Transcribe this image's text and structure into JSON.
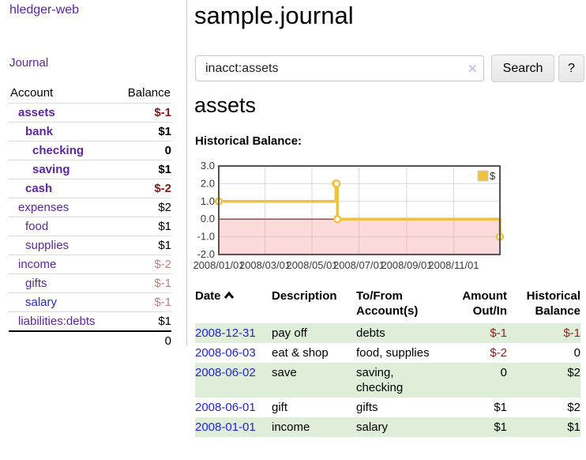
{
  "app": {
    "brand": "hledger-web",
    "journal_link": "Journal"
  },
  "sidebar": {
    "header_account": "Account",
    "header_balance": "Balance",
    "accounts": [
      {
        "name": "assets",
        "balance": "$-1"
      },
      {
        "name": "bank",
        "balance": "$1"
      },
      {
        "name": "checking",
        "balance": "0"
      },
      {
        "name": "saving",
        "balance": "$1"
      },
      {
        "name": "cash",
        "balance": "$-2"
      },
      {
        "name": "expenses",
        "balance": "$2"
      },
      {
        "name": "food",
        "balance": "$1"
      },
      {
        "name": "supplies",
        "balance": "$1"
      },
      {
        "name": "income",
        "balance": "$-2"
      },
      {
        "name": "gifts",
        "balance": "$-1"
      },
      {
        "name": "salary",
        "balance": "$-1"
      },
      {
        "name": "liabilities:debts",
        "balance": "$1"
      }
    ],
    "total": "0"
  },
  "main": {
    "title": "sample.journal",
    "search": {
      "value": "inacct:assets",
      "clear_glyph": "✕",
      "button_label": "Search",
      "help_label": "?"
    },
    "account_heading": "assets",
    "chart_label": "Historical Balance:"
  },
  "chart_data": {
    "type": "line",
    "step": true,
    "title": "Historical Balance of assets",
    "legend": "$",
    "legend_position": "top-right",
    "grid": true,
    "ylim": [
      -2,
      3
    ],
    "xrange": [
      "2008-01-01",
      "2008-12-31"
    ],
    "yticks": [
      {
        "label": "3.0",
        "value": 3
      },
      {
        "label": "2.0",
        "value": 2
      },
      {
        "label": "1.0",
        "value": 1
      },
      {
        "label": "0.0",
        "value": 0
      },
      {
        "label": "-1.0",
        "value": -1
      },
      {
        "label": "-2.0",
        "value": -2
      }
    ],
    "xticks": [
      {
        "label": "2008/01/01",
        "date": "2008-01-01"
      },
      {
        "label": "2008/03/01",
        "date": "2008-03-01"
      },
      {
        "label": "2008/05/01",
        "date": "2008-05-01"
      },
      {
        "label": "2008/07/01",
        "date": "2008-07-01"
      },
      {
        "label": "2008/09/01",
        "date": "2008-09-01"
      },
      {
        "label": "2008/11/01",
        "date": "2008-11-01"
      }
    ],
    "series": [
      {
        "name": "$",
        "color": "#edc240",
        "points": [
          [
            "2008-01-01",
            1
          ],
          [
            "2008-06-01",
            2
          ],
          [
            "2008-06-02",
            2
          ],
          [
            "2008-06-03",
            0
          ],
          [
            "2008-12-31",
            -1
          ]
        ]
      }
    ],
    "grid_color": "#dadada",
    "border_color": "#545454",
    "tick_color": "#3b3b3b",
    "zero_line_color": "#a01010",
    "negative_region_color": "rgba(250,110,110,0.25)"
  },
  "register": {
    "headers": {
      "date": "Date",
      "description": "Description",
      "tofrom_line1": "To/From",
      "tofrom_line2": "Account(s)",
      "amount_line1": "Amount",
      "amount_line2": "Out/In",
      "balance_line1": "Historical",
      "balance_line2": "Balance"
    },
    "rows": [
      {
        "date": "2008-12-31",
        "description": "pay off",
        "accounts": "debts",
        "amount": "$-1",
        "balance": "$-1"
      },
      {
        "date": "2008-06-03",
        "description": "eat & shop",
        "accounts": "food, supplies",
        "amount": "$-2",
        "balance": "0"
      },
      {
        "date": "2008-06-02",
        "description": "save",
        "accounts": "saving, checking",
        "amount": "0",
        "balance": "$2"
      },
      {
        "date": "2008-06-01",
        "description": "gift",
        "accounts": "gifts",
        "amount": "$1",
        "balance": "$2"
      },
      {
        "date": "2008-01-01",
        "description": "income",
        "accounts": "salary",
        "amount": "$1",
        "balance": "$1"
      }
    ]
  }
}
